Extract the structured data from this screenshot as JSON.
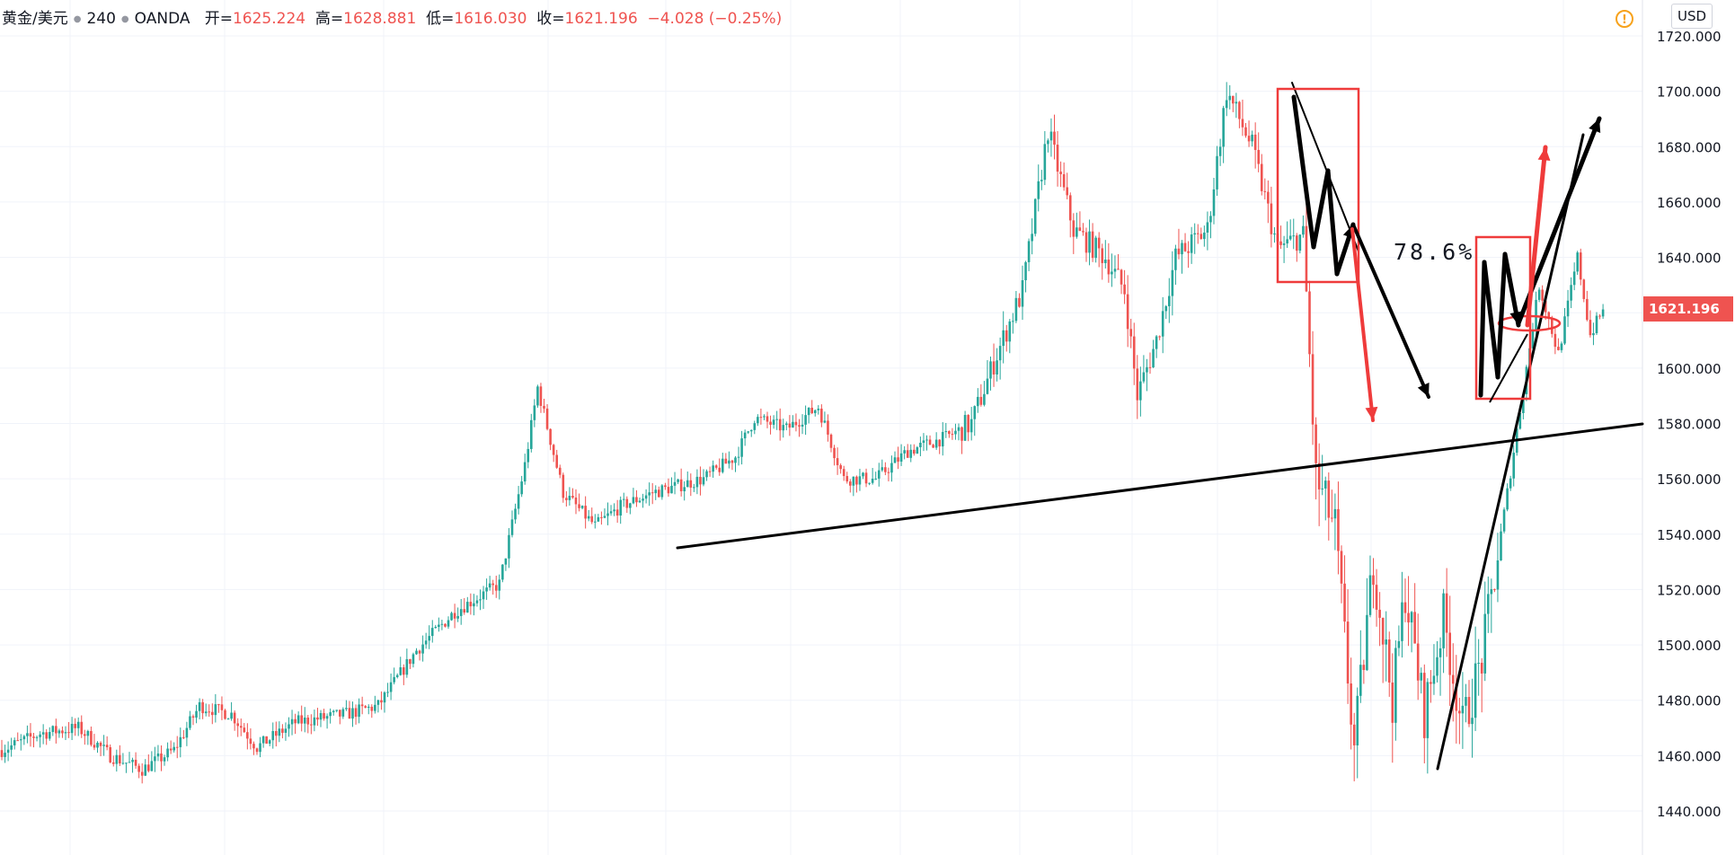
{
  "header": {
    "symbol": "黄金/美元",
    "interval": "240",
    "source": "OANDA",
    "open_label": "开=",
    "open_value": "1625.224",
    "high_label": "高=",
    "high_value": "1628.881",
    "low_label": "低=",
    "low_value": "1616.030",
    "close_label": "收=",
    "close_value": "1621.196",
    "change": "−4.028 (−0.25%)"
  },
  "currency": "USD",
  "warning_icon": "exclamation-circle-icon",
  "last_price": "1621.196",
  "annotation": "78.6%",
  "colors": {
    "up": "#26a69a",
    "down": "#ef5350",
    "grid": "#f0f3fa",
    "axis_text": "#131722"
  },
  "chart_data": {
    "type": "candlestick",
    "ylabel": "",
    "xlabel": "",
    "ylim": [
      1432,
      1724
    ],
    "ytick_labels": [
      "1440.000",
      "1460.000",
      "1480.000",
      "1500.000",
      "1520.000",
      "1540.000",
      "1560.000",
      "1580.000",
      "1600.000",
      "1620.000",
      "1640.000",
      "1660.000",
      "1680.000",
      "1700.000",
      "1720.000"
    ],
    "last_value": 1621.196,
    "price_path": [
      {
        "i": 0,
        "p": 1462
      },
      {
        "i": 12,
        "p": 1468
      },
      {
        "i": 24,
        "p": 1470
      },
      {
        "i": 34,
        "p": 1460
      },
      {
        "i": 44,
        "p": 1455
      },
      {
        "i": 54,
        "p": 1462
      },
      {
        "i": 62,
        "p": 1478
      },
      {
        "i": 72,
        "p": 1475
      },
      {
        "i": 80,
        "p": 1463
      },
      {
        "i": 92,
        "p": 1472
      },
      {
        "i": 108,
        "p": 1475
      },
      {
        "i": 118,
        "p": 1478
      },
      {
        "i": 130,
        "p": 1498
      },
      {
        "i": 142,
        "p": 1512
      },
      {
        "i": 156,
        "p": 1522
      },
      {
        "i": 164,
        "p": 1565
      },
      {
        "i": 168,
        "p": 1593
      },
      {
        "i": 176,
        "p": 1555
      },
      {
        "i": 186,
        "p": 1543
      },
      {
        "i": 194,
        "p": 1550
      },
      {
        "i": 204,
        "p": 1555
      },
      {
        "i": 220,
        "p": 1560
      },
      {
        "i": 230,
        "p": 1568
      },
      {
        "i": 236,
        "p": 1582
      },
      {
        "i": 246,
        "p": 1578
      },
      {
        "i": 256,
        "p": 1586
      },
      {
        "i": 264,
        "p": 1560
      },
      {
        "i": 274,
        "p": 1560
      },
      {
        "i": 284,
        "p": 1570
      },
      {
        "i": 296,
        "p": 1575
      },
      {
        "i": 304,
        "p": 1580
      },
      {
        "i": 312,
        "p": 1605
      },
      {
        "i": 320,
        "p": 1628
      },
      {
        "i": 328,
        "p": 1686
      },
      {
        "i": 336,
        "p": 1650
      },
      {
        "i": 346,
        "p": 1640
      },
      {
        "i": 352,
        "p": 1628
      },
      {
        "i": 356,
        "p": 1590
      },
      {
        "i": 362,
        "p": 1610
      },
      {
        "i": 368,
        "p": 1640
      },
      {
        "i": 378,
        "p": 1650
      },
      {
        "i": 384,
        "p": 1700
      },
      {
        "i": 392,
        "p": 1680
      },
      {
        "i": 400,
        "p": 1643
      },
      {
        "i": 408,
        "p": 1648
      },
      {
        "i": 412,
        "p": 1560
      },
      {
        "i": 418,
        "p": 1542
      },
      {
        "i": 424,
        "p": 1462
      },
      {
        "i": 430,
        "p": 1530
      },
      {
        "i": 436,
        "p": 1480
      },
      {
        "i": 440,
        "p": 1520
      },
      {
        "i": 446,
        "p": 1475
      },
      {
        "i": 452,
        "p": 1510
      },
      {
        "i": 458,
        "p": 1470
      },
      {
        "i": 464,
        "p": 1495
      },
      {
        "i": 470,
        "p": 1540
      },
      {
        "i": 476,
        "p": 1585
      },
      {
        "i": 482,
        "p": 1630
      },
      {
        "i": 488,
        "p": 1605
      },
      {
        "i": 494,
        "p": 1640
      },
      {
        "i": 498,
        "p": 1612
      },
      {
        "i": 502,
        "p": 1621
      }
    ]
  }
}
